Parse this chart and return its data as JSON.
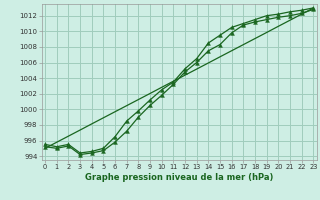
{
  "title": "Graphe pression niveau de la mer (hPa)",
  "bg_color": "#ceeee4",
  "grid_color": "#a0ccbc",
  "line_color": "#1a6620",
  "x_hours": [
    0,
    1,
    2,
    3,
    4,
    5,
    6,
    7,
    8,
    9,
    10,
    11,
    12,
    13,
    14,
    15,
    16,
    17,
    18,
    19,
    20,
    21,
    22,
    23
  ],
  "series1": [
    995.2,
    995.0,
    995.3,
    994.2,
    994.4,
    994.7,
    995.8,
    997.2,
    999.0,
    1000.5,
    1001.8,
    1003.2,
    1004.8,
    1006.0,
    1007.5,
    1008.3,
    1009.8,
    1010.8,
    1011.2,
    1011.5,
    1011.8,
    1012.0,
    1012.3,
    1012.8
  ],
  "series2": [
    995.5,
    995.2,
    995.5,
    994.4,
    994.6,
    995.0,
    996.5,
    998.5,
    999.8,
    1001.2,
    1002.5,
    1003.5,
    1005.2,
    1006.5,
    1008.5,
    1009.5,
    1010.5,
    1011.0,
    1011.5,
    1012.0,
    1012.2,
    1012.5,
    1012.7,
    1013.0
  ],
  "trend": [
    995.0,
    995.78,
    996.56,
    997.34,
    998.13,
    998.91,
    999.69,
    1000.47,
    1001.25,
    1002.03,
    1002.82,
    1003.6,
    1004.38,
    1005.16,
    1005.94,
    1006.73,
    1007.51,
    1008.29,
    1009.07,
    1009.85,
    1010.64,
    1011.42,
    1012.2,
    1012.98
  ],
  "ylim": [
    993.5,
    1013.5
  ],
  "yticks": [
    994,
    996,
    998,
    1000,
    1002,
    1004,
    1006,
    1008,
    1010,
    1012
  ],
  "xlim": [
    -0.3,
    23.3
  ],
  "xticks": [
    0,
    1,
    2,
    3,
    4,
    5,
    6,
    7,
    8,
    9,
    10,
    11,
    12,
    13,
    14,
    15,
    16,
    17,
    18,
    19,
    20,
    21,
    22,
    23
  ]
}
